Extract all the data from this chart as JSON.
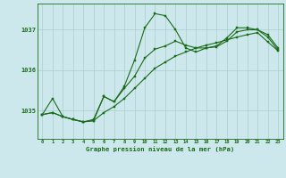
{
  "title": "Graphe pression niveau de la mer (hPa)",
  "bg_color": "#cce8ec",
  "line_color": "#1a6b1a",
  "grid_color": "#aacccc",
  "axis_color": "#1a6b1a",
  "x_labels": [
    "0",
    "1",
    "2",
    "3",
    "4",
    "5",
    "6",
    "7",
    "8",
    "9",
    "10",
    "11",
    "12",
    "13",
    "14",
    "15",
    "16",
    "17",
    "18",
    "19",
    "20",
    "21",
    "22",
    "23"
  ],
  "yticks": [
    1035,
    1036,
    1037
  ],
  "ylim": [
    1034.3,
    1037.65
  ],
  "xlim": [
    -0.5,
    23.5
  ],
  "s1": [
    1034.9,
    1035.3,
    1034.85,
    1034.78,
    1034.72,
    1034.78,
    1035.35,
    1035.22,
    1035.6,
    1036.25,
    1037.05,
    1037.4,
    1037.35,
    1037.0,
    1036.55,
    1036.45,
    1036.55,
    1036.6,
    1036.8,
    1037.05,
    1037.05,
    1037.0,
    1036.88,
    1036.55
  ],
  "s2": [
    1034.9,
    1034.95,
    1034.85,
    1034.78,
    1034.72,
    1034.75,
    1034.95,
    1035.1,
    1035.3,
    1035.55,
    1035.8,
    1036.05,
    1036.2,
    1036.35,
    1036.45,
    1036.55,
    1036.62,
    1036.68,
    1036.75,
    1036.82,
    1036.88,
    1036.93,
    1036.7,
    1036.48
  ],
  "s3": [
    1034.9,
    1034.95,
    1034.85,
    1034.78,
    1034.72,
    1034.75,
    1035.35,
    1035.22,
    1035.55,
    1035.85,
    1036.3,
    1036.52,
    1036.6,
    1036.72,
    1036.62,
    1036.55,
    1036.55,
    1036.58,
    1036.72,
    1036.95,
    1037.0,
    1037.0,
    1036.82,
    1036.5
  ],
  "figsize": [
    3.2,
    2.0
  ],
  "dpi": 100
}
